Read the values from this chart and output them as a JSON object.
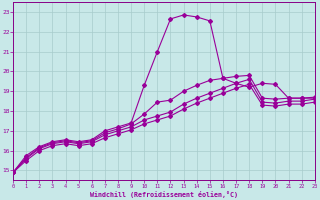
{
  "title": "",
  "xlabel": "Windchill (Refroidissement éolien,°C)",
  "xlim": [
    0,
    23
  ],
  "ylim": [
    14.5,
    23.5
  ],
  "yticks": [
    15,
    16,
    17,
    18,
    19,
    20,
    21,
    22,
    23
  ],
  "xticks": [
    0,
    1,
    2,
    3,
    4,
    5,
    6,
    7,
    8,
    9,
    10,
    11,
    12,
    13,
    14,
    15,
    16,
    17,
    18,
    19,
    20,
    21,
    22,
    23
  ],
  "bg_color": "#c8e8e8",
  "grid_color": "#a8cccc",
  "line_color": "#990099",
  "spine_color": "#880088",
  "line1_x": [
    0,
    1,
    2,
    3,
    4,
    5,
    6,
    7,
    8,
    9,
    10,
    11,
    12,
    13,
    14,
    15,
    16,
    17,
    18,
    19,
    20,
    21,
    22,
    23
  ],
  "line1_y": [
    14.9,
    15.75,
    16.2,
    16.45,
    16.55,
    16.45,
    16.55,
    17.0,
    17.2,
    17.4,
    19.3,
    21.0,
    22.65,
    22.85,
    22.75,
    22.55,
    19.65,
    19.4,
    19.2,
    19.4,
    19.35,
    18.65,
    18.65,
    18.65
  ],
  "line2_x": [
    0,
    1,
    2,
    3,
    4,
    5,
    6,
    7,
    8,
    9,
    10,
    11,
    12,
    13,
    14,
    15,
    16,
    17,
    18,
    19,
    20,
    21,
    22,
    23
  ],
  "line2_y": [
    14.9,
    15.65,
    16.15,
    16.4,
    16.5,
    16.4,
    16.5,
    16.9,
    17.1,
    17.35,
    17.85,
    18.45,
    18.55,
    19.0,
    19.3,
    19.55,
    19.65,
    19.75,
    19.8,
    18.65,
    18.6,
    18.65,
    18.65,
    18.7
  ],
  "line3_x": [
    0,
    1,
    2,
    3,
    4,
    5,
    6,
    7,
    8,
    9,
    10,
    11,
    12,
    13,
    14,
    15,
    16,
    17,
    18,
    19,
    20,
    21,
    22,
    23
  ],
  "line3_y": [
    14.9,
    15.6,
    16.1,
    16.35,
    16.45,
    16.35,
    16.45,
    16.8,
    17.0,
    17.2,
    17.55,
    17.75,
    17.95,
    18.35,
    18.65,
    18.9,
    19.15,
    19.4,
    19.6,
    18.45,
    18.4,
    18.5,
    18.5,
    18.6
  ],
  "line4_x": [
    0,
    1,
    2,
    3,
    4,
    5,
    6,
    7,
    8,
    9,
    10,
    11,
    12,
    13,
    14,
    15,
    16,
    17,
    18,
    19,
    20,
    21,
    22,
    23
  ],
  "line4_y": [
    14.9,
    15.5,
    16.0,
    16.25,
    16.35,
    16.25,
    16.35,
    16.65,
    16.85,
    17.05,
    17.35,
    17.55,
    17.75,
    18.1,
    18.4,
    18.65,
    18.9,
    19.15,
    19.35,
    18.3,
    18.25,
    18.35,
    18.35,
    18.45
  ]
}
